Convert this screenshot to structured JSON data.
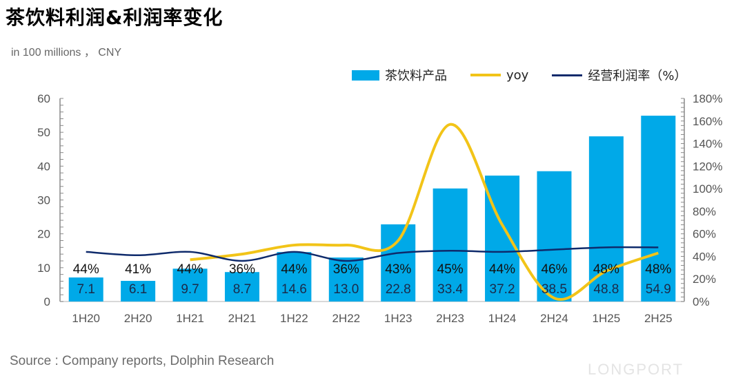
{
  "title": "茶饮料利润&利润率变化",
  "unit_note": "in 100 millions ， CNY",
  "source": "Source : Company reports, Dolphin Research",
  "watermark": "DolphinResearch",
  "logo": "LONGPORT",
  "colors": {
    "bar": "#00a9e8",
    "yoy": "#f2c418",
    "margin": "#0e2a6b"
  },
  "chart_data": {
    "type": "bar",
    "categories": [
      "1H20",
      "2H20",
      "1H21",
      "2H21",
      "1H22",
      "2H22",
      "1H23",
      "2H23",
      "1H24",
      "2H24",
      "1H25",
      "2H25"
    ],
    "series": [
      {
        "name": "茶饮料产品",
        "type": "bar",
        "axis": "left",
        "values": [
          7.1,
          6.1,
          9.7,
          8.7,
          14.6,
          13.0,
          22.8,
          33.4,
          37.2,
          38.5,
          48.8,
          54.9
        ],
        "labels": [
          "7.1",
          "6.1",
          "9.7",
          "8.7",
          "14.6",
          "13.0",
          "22.8",
          "33.4",
          "37.2",
          "38.5",
          "48.8",
          "54.9"
        ]
      },
      {
        "name": "yoy",
        "type": "line",
        "axis": "right",
        "values": [
          null,
          null,
          37,
          42,
          50,
          50,
          54,
          157,
          68,
          3,
          27,
          43
        ]
      },
      {
        "name": "经营利润率（%）",
        "type": "line",
        "axis": "right",
        "values": [
          44,
          41,
          44,
          36,
          44,
          36,
          43,
          45,
          44,
          46,
          48,
          48
        ],
        "labels": [
          "44%",
          "41%",
          "44%",
          "36%",
          "44%",
          "36%",
          "43%",
          "45%",
          "44%",
          "46%",
          "48%",
          "48%"
        ]
      }
    ],
    "left_axis": {
      "ylim": [
        0,
        60
      ],
      "ticks": [
        "0",
        "10",
        "20",
        "30",
        "40",
        "50",
        "60"
      ]
    },
    "right_axis": {
      "ylim": [
        0,
        180
      ],
      "ticks": [
        "0%",
        "20%",
        "40%",
        "60%",
        "80%",
        "100%",
        "120%",
        "140%",
        "160%",
        "180%"
      ]
    },
    "legend": "top-right",
    "grid": false
  }
}
